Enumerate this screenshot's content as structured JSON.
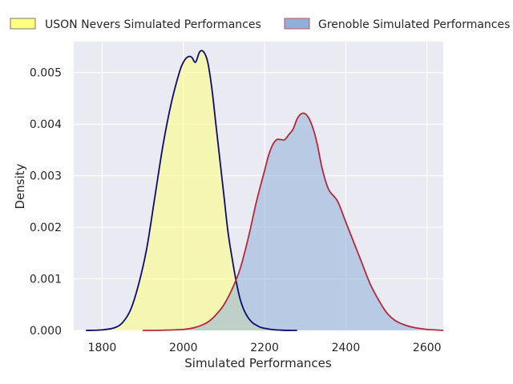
{
  "chart_data": {
    "type": "area",
    "title": "",
    "xlabel": "Simulated Performances",
    "ylabel": "Density",
    "xlim": [
      1730,
      2640
    ],
    "ylim": [
      0,
      0.0056
    ],
    "x_ticks": [
      1800,
      2000,
      2200,
      2400,
      2600
    ],
    "y_ticks": [
      0.0,
      0.001,
      0.002,
      0.003,
      0.004,
      0.005
    ],
    "x_tick_labels": [
      "1800",
      "2000",
      "2200",
      "2400",
      "2600"
    ],
    "y_tick_labels": [
      "0.000",
      "0.001",
      "0.002",
      "0.003",
      "0.004",
      "0.005"
    ],
    "grid": true,
    "legend_position": "top",
    "series": [
      {
        "name": "USON Nevers Simulated Performances",
        "fill_color": "#ffff7f",
        "line_color": "#0b0b6e",
        "x": [
          1760,
          1800,
          1830,
          1850,
          1870,
          1890,
          1910,
          1930,
          1950,
          1970,
          1990,
          2000,
          2010,
          2020,
          2030,
          2040,
          2050,
          2060,
          2070,
          2080,
          2090,
          2100,
          2110,
          2120,
          2130,
          2140,
          2150,
          2160,
          2170,
          2180,
          2190,
          2200,
          2220,
          2240,
          2260,
          2280
        ],
        "y": [
          0.0,
          1e-05,
          5e-05,
          0.00015,
          0.0004,
          0.0009,
          0.0016,
          0.0026,
          0.0036,
          0.0044,
          0.005,
          0.0052,
          0.0053,
          0.0053,
          0.0052,
          0.0054,
          0.0054,
          0.0052,
          0.0047,
          0.004,
          0.0033,
          0.0026,
          0.0019,
          0.0014,
          0.00095,
          0.0006,
          0.00038,
          0.00024,
          0.00015,
          0.0001,
          6e-05,
          4e-05,
          1.5e-05,
          5e-06,
          1e-06,
          0.0
        ]
      },
      {
        "name": "Grenoble Simulated Performances",
        "fill_color": "#8fb0d9",
        "line_color": "#b5283a",
        "x": [
          1900,
          1950,
          2000,
          2030,
          2060,
          2080,
          2100,
          2120,
          2140,
          2160,
          2180,
          2200,
          2210,
          2220,
          2230,
          2240,
          2250,
          2260,
          2270,
          2280,
          2290,
          2300,
          2310,
          2320,
          2330,
          2340,
          2350,
          2360,
          2380,
          2400,
          2420,
          2440,
          2460,
          2480,
          2500,
          2520,
          2540,
          2560,
          2580,
          2600,
          2620,
          2640
        ],
        "y": [
          0.0,
          4e-06,
          2e-05,
          6e-05,
          0.00016,
          0.0003,
          0.0005,
          0.0008,
          0.0012,
          0.0018,
          0.0025,
          0.0031,
          0.0034,
          0.0036,
          0.0037,
          0.0037,
          0.0037,
          0.0038,
          0.0039,
          0.0041,
          0.0042,
          0.0042,
          0.0041,
          0.0039,
          0.0036,
          0.0032,
          0.0029,
          0.0027,
          0.0025,
          0.0021,
          0.0017,
          0.0013,
          0.0009,
          0.0006,
          0.00035,
          0.0002,
          0.00012,
          7e-05,
          4e-05,
          2e-05,
          1e-05,
          0.0
        ]
      }
    ]
  }
}
